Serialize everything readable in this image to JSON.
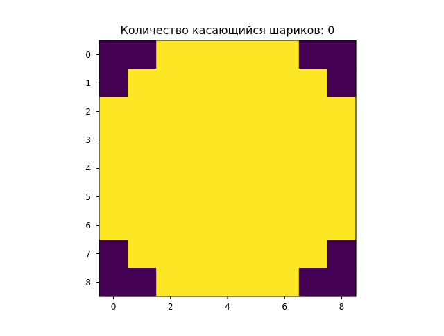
{
  "chart_data": {
    "type": "heatmap",
    "title": "Количество касающийся шариков: 0",
    "xlabel": "",
    "ylabel": "",
    "colormap": "viridis",
    "colors": {
      "low": "#440154",
      "high": "#fde725"
    },
    "rows": 9,
    "cols": 9,
    "xlim": [
      -0.5,
      8.5
    ],
    "ylim": [
      8.5,
      -0.5
    ],
    "x_ticks": [
      0,
      2,
      4,
      6,
      8
    ],
    "x_tick_labels": [
      "0",
      "2",
      "4",
      "6",
      "8"
    ],
    "y_ticks": [
      0,
      1,
      2,
      3,
      4,
      5,
      6,
      7,
      8
    ],
    "y_tick_labels": [
      "0",
      "1",
      "2",
      "3",
      "4",
      "5",
      "6",
      "7",
      "8"
    ],
    "grid": false,
    "values": [
      [
        0,
        0,
        1,
        1,
        1,
        1,
        1,
        0,
        0
      ],
      [
        0,
        1,
        1,
        1,
        1,
        1,
        1,
        1,
        0
      ],
      [
        1,
        1,
        1,
        1,
        1,
        1,
        1,
        1,
        1
      ],
      [
        1,
        1,
        1,
        1,
        1,
        1,
        1,
        1,
        1
      ],
      [
        1,
        1,
        1,
        1,
        1,
        1,
        1,
        1,
        1
      ],
      [
        1,
        1,
        1,
        1,
        1,
        1,
        1,
        1,
        1
      ],
      [
        1,
        1,
        1,
        1,
        1,
        1,
        1,
        1,
        1
      ],
      [
        0,
        1,
        1,
        1,
        1,
        1,
        1,
        1,
        0
      ],
      [
        0,
        0,
        1,
        1,
        1,
        1,
        1,
        0,
        0
      ]
    ]
  }
}
